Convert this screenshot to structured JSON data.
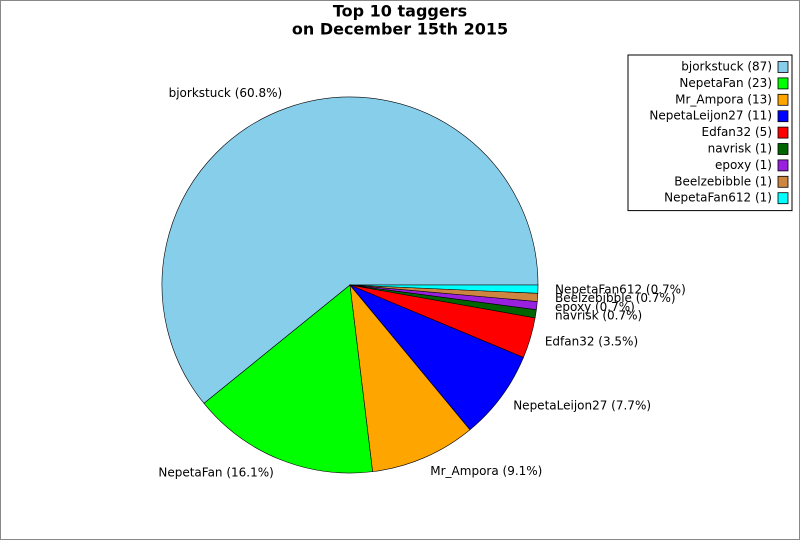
{
  "chart_data": {
    "type": "pie",
    "title": [
      "Top 10 taggers",
      "on December 15th 2015"
    ],
    "values": [
      87,
      23,
      13,
      11,
      5,
      1,
      1,
      1,
      1
    ],
    "value_labels": [
      "bjorkstuck (87)",
      "NepetaFan (23)",
      "Mr_Ampora (13)",
      "NepetaLeijon27 (11)",
      "Edfan32 (5)",
      "navrisk (1)",
      "epoxy (1)",
      "Beelzebibble (1)",
      "NepetaFan612 (1)"
    ],
    "percentages": [
      60.8,
      16.1,
      9.1,
      7.7,
      3.5,
      0.7,
      0.7,
      0.7,
      0.7
    ],
    "percentage_labels": [
      "bjorkstuck (60.8%)",
      "NepetaFan (16.1%)",
      "Mr_Ampora (9.1%)",
      "NepetaLeijon27 (7.7%)",
      "Edfan32 (3.5%)",
      "navrisk (0.7%)",
      "epoxy (0.7%)",
      "Beelzebibble (0.7%)",
      "NepetaFan612 (0.7%)"
    ],
    "colors": [
      "#87ceeb",
      "#00ff00",
      "#ffa500",
      "#0000ff",
      "#ff0000",
      "#006400",
      "#9a20e0",
      "#cd853f",
      "#00ffff"
    ],
    "legend": "upper right"
  }
}
